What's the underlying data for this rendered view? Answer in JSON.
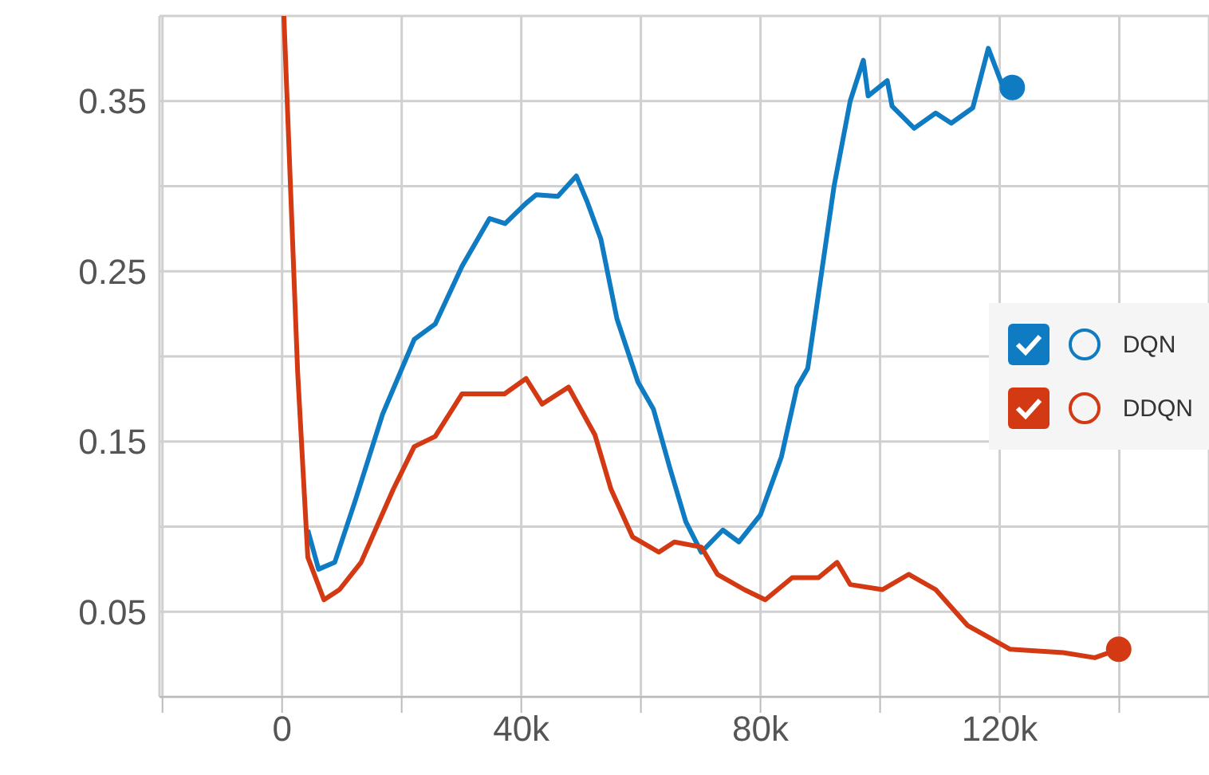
{
  "chart_data": {
    "type": "line",
    "xlim": [
      -20500,
      155000
    ],
    "ylim": [
      0,
      0.4
    ],
    "xticks": [
      {
        "value": -20000,
        "label": null
      },
      {
        "value": 0,
        "label": "0"
      },
      {
        "value": 20000,
        "label": null
      },
      {
        "value": 40000,
        "label": "40k"
      },
      {
        "value": 60000,
        "label": null
      },
      {
        "value": 80000,
        "label": "80k"
      },
      {
        "value": 100000,
        "label": null
      },
      {
        "value": 120000,
        "label": "120k"
      },
      {
        "value": 140000,
        "label": null
      }
    ],
    "yticks": [
      {
        "value": 0,
        "label": null
      },
      0.05,
      {
        "value": 0.1,
        "label": null
      },
      0.15,
      {
        "value": 0.2,
        "label": null
      },
      0.25,
      {
        "value": 0.3,
        "label": null
      },
      0.35
    ],
    "grid": true,
    "legend": "right",
    "line_style": "solid",
    "series": [
      {
        "name": "DQN",
        "color": "#0f7bc2",
        "x": [
          4300,
          6100,
          8800,
          12300,
          16800,
          22100,
          25600,
          30100,
          34700,
          37300,
          40800,
          42500,
          46100,
          49200,
          51000,
          53300,
          56000,
          59500,
          62100,
          64800,
          67500,
          70100,
          73700,
          76400,
          80000,
          83500,
          86100,
          87900,
          92300,
          95000,
          97200,
          98000,
          101200,
          102000,
          105700,
          109300,
          111900,
          115500,
          118100,
          120800,
          122100
        ],
        "values": [
          0.098,
          0.075,
          0.079,
          0.116,
          0.166,
          0.21,
          0.219,
          0.253,
          0.281,
          0.278,
          0.29,
          0.295,
          0.294,
          0.306,
          0.291,
          0.269,
          0.222,
          0.185,
          0.169,
          0.135,
          0.103,
          0.085,
          0.098,
          0.091,
          0.107,
          0.141,
          0.182,
          0.193,
          0.3,
          0.35,
          0.374,
          0.353,
          0.362,
          0.347,
          0.334,
          0.343,
          0.337,
          0.346,
          0.381,
          0.356,
          0.358
        ]
      },
      {
        "name": "DDQN",
        "color": "#d33a14",
        "x": [
          300,
          2600,
          4300,
          7000,
          9600,
          13200,
          18600,
          22100,
          25600,
          30100,
          33600,
          37200,
          40800,
          43500,
          47900,
          52300,
          55000,
          58600,
          63000,
          65600,
          70100,
          72800,
          77300,
          80800,
          85300,
          89700,
          92800,
          95000,
          100400,
          104800,
          109300,
          114600,
          121700,
          130600,
          135900,
          139900
        ],
        "values": [
          0.4,
          0.191,
          0.082,
          0.057,
          0.063,
          0.079,
          0.122,
          0.147,
          0.153,
          0.178,
          0.178,
          0.178,
          0.187,
          0.172,
          0.182,
          0.154,
          0.122,
          0.094,
          0.085,
          0.091,
          0.088,
          0.072,
          0.063,
          0.057,
          0.07,
          0.07,
          0.079,
          0.066,
          0.063,
          0.072,
          0.063,
          0.042,
          0.028,
          0.026,
          0.023,
          0.028
        ]
      }
    ]
  }
}
